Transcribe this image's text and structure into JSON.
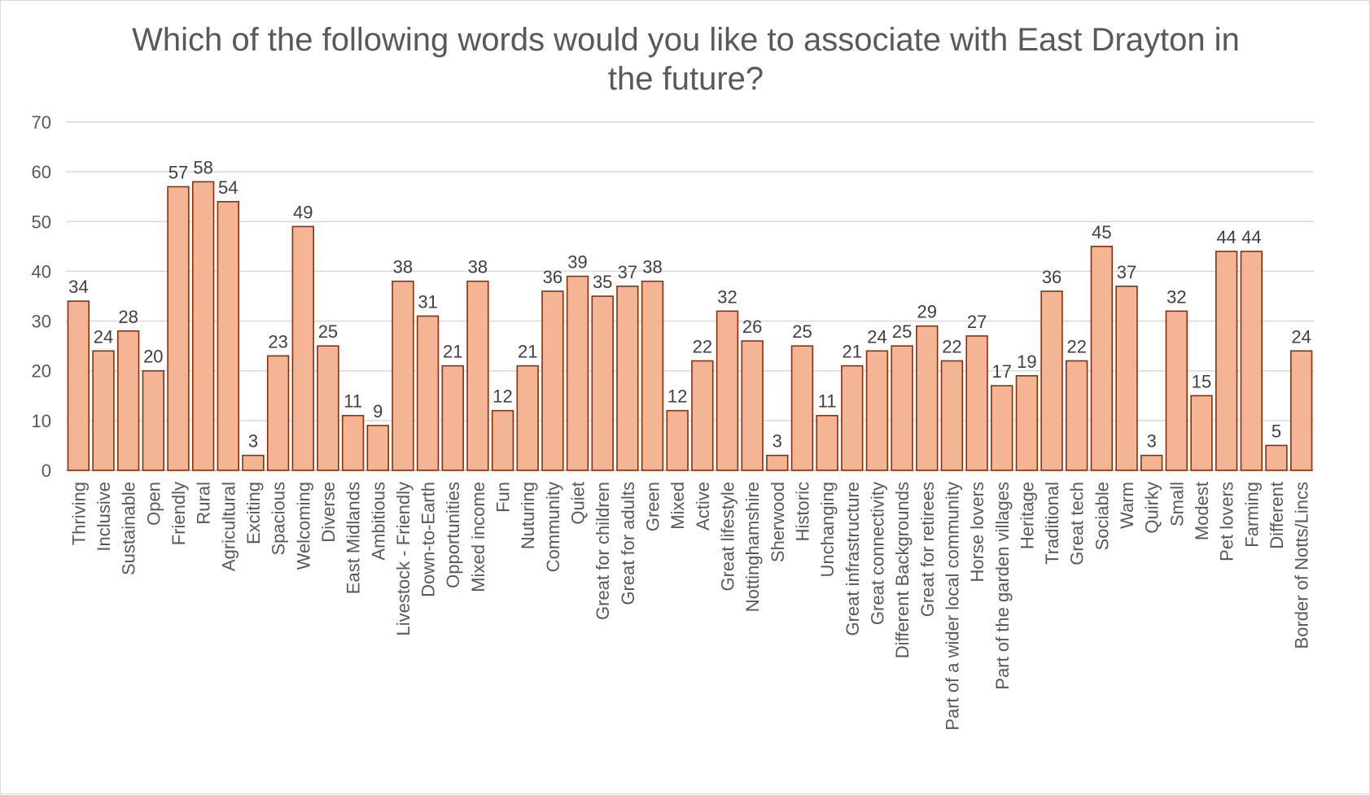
{
  "chart_data": {
    "type": "bar",
    "title": "Which of the following words would you like to associate with East Drayton in the future?",
    "xlabel": "",
    "ylabel": "",
    "ylim": [
      0,
      70
    ],
    "yticks": [
      0,
      10,
      20,
      30,
      40,
      50,
      60,
      70
    ],
    "grid": true,
    "legend": "none",
    "colors": {
      "bar_fill": "#f4b594",
      "bar_stroke": "#8b2e0a",
      "grid": "#d9d9d9",
      "text": "#595959"
    },
    "categories": [
      "Thriving",
      "Inclusive",
      "Sustainable",
      "Open",
      "Friendly",
      "Rural",
      "Agricultural",
      "Exciting",
      "Spacious",
      "Welcoming",
      "Diverse",
      "East Midlands",
      "Ambitious",
      "Livestock - Friendly",
      "Down-to-Earth",
      "Opportunities",
      "Mixed income",
      "Fun",
      "Nuturing",
      "Community",
      "Quiet",
      "Great for children",
      "Great for adults",
      "Green",
      "Mixed",
      "Active",
      "Great lifestyle",
      "Nottinghamshire",
      "Sherwood",
      "Historic",
      "Unchanging",
      "Great infrastructure",
      "Great connectivity",
      "Different Backgrounds",
      "Great for retirees",
      "Part of a wider local community",
      "Horse lovers",
      "Part of the garden villages",
      "Heritage",
      "Traditional",
      "Great tech",
      "Sociable",
      "Warm",
      "Quirky",
      "Small",
      "Modest",
      "Pet lovers",
      "Farming",
      "Different",
      "Border of Notts/Lincs"
    ],
    "values": [
      34,
      24,
      28,
      20,
      57,
      58,
      54,
      3,
      23,
      49,
      25,
      11,
      9,
      38,
      31,
      21,
      38,
      12,
      21,
      36,
      39,
      35,
      37,
      38,
      12,
      22,
      32,
      26,
      3,
      25,
      11,
      21,
      24,
      25,
      29,
      22,
      27,
      17,
      19,
      36,
      22,
      45,
      37,
      3,
      32,
      15,
      44,
      44,
      5,
      24
    ]
  }
}
